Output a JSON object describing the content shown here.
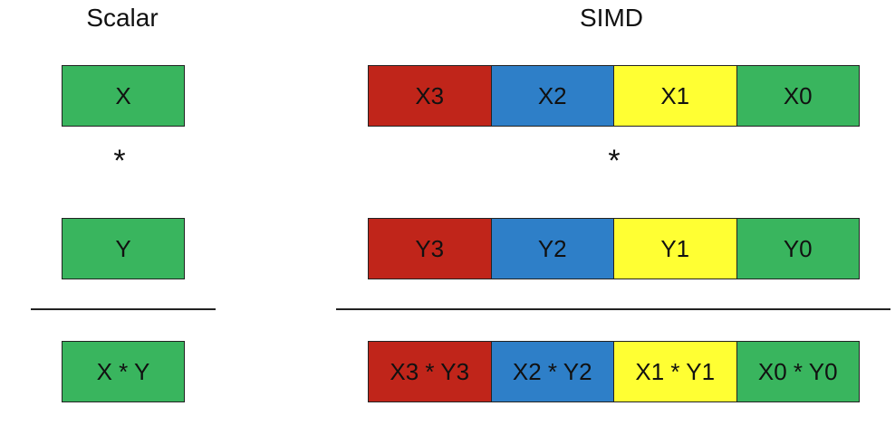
{
  "headings": {
    "scalar": "Scalar",
    "simd": "SIMD"
  },
  "operator": "*",
  "colors": {
    "lane3": "#c0251a",
    "lane2": "#2e7fc8",
    "lane1": "#ffff33",
    "lane0": "#39b55e",
    "scalar": "#39b55e",
    "rule": "#222222"
  },
  "scalar": {
    "x": "X",
    "y": "Y",
    "result": "X * Y"
  },
  "simd": {
    "x": [
      "X3",
      "X2",
      "X1",
      "X0"
    ],
    "y": [
      "Y3",
      "Y2",
      "Y1",
      "Y0"
    ],
    "result": [
      "X3 * Y3",
      "X2 * Y2",
      "X1 * Y1",
      "X0 * Y0"
    ]
  }
}
